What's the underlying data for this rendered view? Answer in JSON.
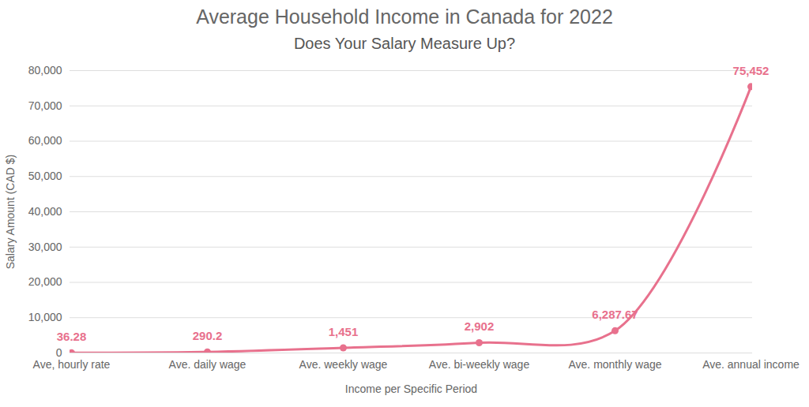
{
  "chart_data": {
    "type": "line",
    "title": "Average Household Income in Canada for 2022",
    "subtitle": "Does Your Salary Measure Up?",
    "x_label": "Income per Specific Period",
    "y_label": "Salary Amount (CAD $)",
    "categories": [
      "Ave, hourly rate",
      "Ave. daily wage",
      "Ave. weekly wage",
      "Ave. bi-weekly wage",
      "Ave. monthly wage",
      "Ave. annual income"
    ],
    "values": [
      36.28,
      290.2,
      1451,
      2902,
      6287.67,
      75452
    ],
    "value_labels": [
      "36.28",
      "290.2",
      "1,451",
      "2,902",
      "6,287.67",
      "75,452"
    ],
    "color": "#e8718d",
    "ylim": [
      0,
      80000
    ],
    "yticks": [
      0,
      {
        "value": 10000,
        "label": "10,000"
      },
      {
        "value": 20000,
        "label": "20,000"
      },
      {
        "value": 30000,
        "label": "30,000"
      },
      {
        "value": 40000,
        "label": "40,000"
      },
      {
        "value": 50000,
        "label": "50,000"
      },
      {
        "value": 60000,
        "label": "60,000"
      },
      {
        "value": 70000,
        "label": "70,000"
      },
      {
        "value": 80000,
        "label": "80,000"
      }
    ],
    "grid": true,
    "data_labels": true,
    "marker": "circle",
    "line_style": "solid"
  }
}
